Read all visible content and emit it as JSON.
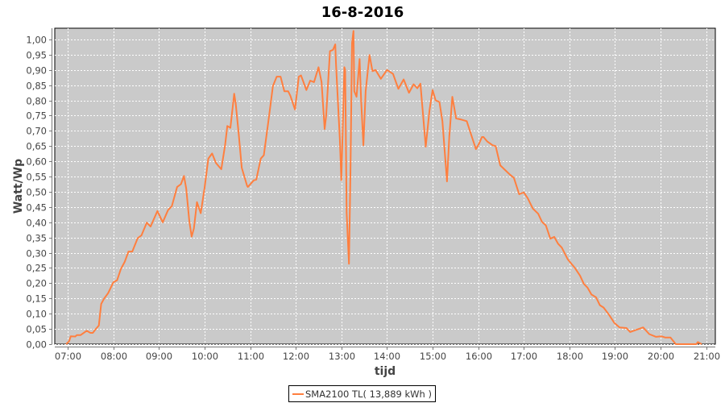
{
  "chart_data": {
    "type": "line",
    "title": "16-8-2016",
    "xlabel": "tijd",
    "ylabel": "Watt/Wp",
    "xlim": [
      "06:43",
      "21:12"
    ],
    "ylim": [
      0,
      1.037
    ],
    "x_ticks": [
      "07:00",
      "08:00",
      "09:00",
      "10:00",
      "11:00",
      "12:00",
      "13:00",
      "14:00",
      "15:00",
      "16:00",
      "17:00",
      "18:00",
      "19:00",
      "20:00",
      "21:00"
    ],
    "y_ticks": [
      "0,00",
      "0,05",
      "0,10",
      "0,15",
      "0,20",
      "0,25",
      "0,30",
      "0,35",
      "0,40",
      "0,45",
      "0,50",
      "0,55",
      "0,60",
      "0,65",
      "0,70",
      "0,75",
      "0,80",
      "0,85",
      "0,90",
      "0,95",
      "1,00"
    ],
    "grid": true,
    "legend_position": "bottom",
    "colors": {
      "series": "#ff7f3f",
      "plot_background": "#cacaca",
      "grid": "#ffffff"
    },
    "series": [
      {
        "name": "SMA2100 TL( 13,889 kWh )",
        "points": [
          [
            "06:58",
            0
          ],
          [
            "07:02",
            0.01
          ],
          [
            "07:04",
            0.026
          ],
          [
            "07:10",
            0.025
          ],
          [
            "07:12",
            0.03
          ],
          [
            "07:17",
            0.03
          ],
          [
            "07:25",
            0.044
          ],
          [
            "07:30",
            0.037
          ],
          [
            "07:33",
            0.037
          ],
          [
            "07:37",
            0.05
          ],
          [
            "07:41",
            0.061
          ],
          [
            "07:44",
            0.132
          ],
          [
            "07:48",
            0.15
          ],
          [
            "07:53",
            0.167
          ],
          [
            "08:00",
            0.203
          ],
          [
            "08:05",
            0.21
          ],
          [
            "08:10",
            0.247
          ],
          [
            "08:15",
            0.27
          ],
          [
            "08:20",
            0.304
          ],
          [
            "08:25",
            0.304
          ],
          [
            "08:32",
            0.348
          ],
          [
            "08:37",
            0.357
          ],
          [
            "08:44",
            0.399
          ],
          [
            "08:49",
            0.386
          ],
          [
            "08:58",
            0.437
          ],
          [
            "09:05",
            0.4
          ],
          [
            "09:12",
            0.44
          ],
          [
            "09:17",
            0.453
          ],
          [
            "09:24",
            0.516
          ],
          [
            "09:29",
            0.525
          ],
          [
            "09:33",
            0.552
          ],
          [
            "09:36",
            0.51
          ],
          [
            "09:40",
            0.404
          ],
          [
            "09:43",
            0.353
          ],
          [
            "09:46",
            0.38
          ],
          [
            "09:50",
            0.466
          ],
          [
            "09:55",
            0.43
          ],
          [
            "10:00",
            0.512
          ],
          [
            "10:05",
            0.609
          ],
          [
            "10:10",
            0.626
          ],
          [
            "10:15",
            0.595
          ],
          [
            "10:22",
            0.574
          ],
          [
            "10:27",
            0.653
          ],
          [
            "10:30",
            0.716
          ],
          [
            "10:34",
            0.71
          ],
          [
            "10:39",
            0.822
          ],
          [
            "10:41",
            0.79
          ],
          [
            "10:45",
            0.688
          ],
          [
            "10:49",
            0.579
          ],
          [
            "10:56",
            0.52
          ],
          [
            "10:57",
            0.516
          ],
          [
            "11:05",
            0.538
          ],
          [
            "11:08",
            0.54
          ],
          [
            "11:14",
            0.609
          ],
          [
            "11:18",
            0.62
          ],
          [
            "11:24",
            0.732
          ],
          [
            "11:30",
            0.847
          ],
          [
            "11:35",
            0.878
          ],
          [
            "11:40",
            0.878
          ],
          [
            "11:45",
            0.83
          ],
          [
            "11:50",
            0.83
          ],
          [
            "11:53",
            0.815
          ],
          [
            "11:59",
            0.77
          ],
          [
            "12:04",
            0.878
          ],
          [
            "12:07",
            0.882
          ],
          [
            "12:14",
            0.834
          ],
          [
            "12:19",
            0.865
          ],
          [
            "12:24",
            0.86
          ],
          [
            "12:30",
            0.909
          ],
          [
            "12:34",
            0.86
          ],
          [
            "12:38",
            0.706
          ],
          [
            "12:40",
            0.75
          ],
          [
            "12:45",
            0.962
          ],
          [
            "12:49",
            0.966
          ],
          [
            "12:52",
            0.984
          ],
          [
            "12:53",
            0.92
          ],
          [
            "12:58",
            0.671
          ],
          [
            "13:00",
            0.538
          ],
          [
            "13:02",
            0.72
          ],
          [
            "13:04",
            0.909
          ],
          [
            "13:05",
            0.9
          ],
          [
            "13:07",
            0.432
          ],
          [
            "13:10",
            0.264
          ],
          [
            "13:12",
            0.573
          ],
          [
            "13:14",
            0.988
          ],
          [
            "13:16",
            1.028
          ],
          [
            "13:17",
            0.83
          ],
          [
            "13:20",
            0.812
          ],
          [
            "13:24",
            0.936
          ],
          [
            "13:26",
            0.8
          ],
          [
            "13:29",
            0.653
          ],
          [
            "13:32",
            0.83
          ],
          [
            "13:37",
            0.949
          ],
          [
            "13:41",
            0.896
          ],
          [
            "13:45",
            0.9
          ],
          [
            "13:52",
            0.871
          ],
          [
            "14:00",
            0.9
          ],
          [
            "14:08",
            0.887
          ],
          [
            "14:15",
            0.838
          ],
          [
            "14:22",
            0.869
          ],
          [
            "14:29",
            0.825
          ],
          [
            "14:35",
            0.853
          ],
          [
            "14:40",
            0.84
          ],
          [
            "14:44",
            0.855
          ],
          [
            "14:51",
            0.648
          ],
          [
            "14:56",
            0.768
          ],
          [
            "15:00",
            0.834
          ],
          [
            "15:04",
            0.8
          ],
          [
            "15:09",
            0.795
          ],
          [
            "15:13",
            0.732
          ],
          [
            "15:19",
            0.534
          ],
          [
            "15:22",
            0.68
          ],
          [
            "15:26",
            0.812
          ],
          [
            "15:31",
            0.741
          ],
          [
            "15:38",
            0.737
          ],
          [
            "15:45",
            0.732
          ],
          [
            "15:50",
            0.693
          ],
          [
            "15:57",
            0.64
          ],
          [
            "16:01",
            0.657
          ],
          [
            "16:05",
            0.68
          ],
          [
            "16:07",
            0.68
          ],
          [
            "16:12",
            0.665
          ],
          [
            "16:19",
            0.653
          ],
          [
            "16:23",
            0.65
          ],
          [
            "16:29",
            0.587
          ],
          [
            "16:36",
            0.57
          ],
          [
            "16:42",
            0.556
          ],
          [
            "16:47",
            0.546
          ],
          [
            "16:54",
            0.492
          ],
          [
            "17:00",
            0.498
          ],
          [
            "17:05",
            0.48
          ],
          [
            "17:12",
            0.445
          ],
          [
            "17:19",
            0.428
          ],
          [
            "17:24",
            0.401
          ],
          [
            "17:29",
            0.39
          ],
          [
            "17:35",
            0.346
          ],
          [
            "17:40",
            0.352
          ],
          [
            "17:45",
            0.33
          ],
          [
            "17:50",
            0.317
          ],
          [
            "17:58",
            0.278
          ],
          [
            "18:07",
            0.251
          ],
          [
            "18:14",
            0.225
          ],
          [
            "18:19",
            0.198
          ],
          [
            "18:24",
            0.185
          ],
          [
            "18:29",
            0.163
          ],
          [
            "18:35",
            0.154
          ],
          [
            "18:40",
            0.128
          ],
          [
            "18:45",
            0.12
          ],
          [
            "18:52",
            0.097
          ],
          [
            "18:59",
            0.07
          ],
          [
            "19:06",
            0.055
          ],
          [
            "19:15",
            0.053
          ],
          [
            "19:20",
            0.04
          ],
          [
            "19:27",
            0.046
          ],
          [
            "19:37",
            0.055
          ],
          [
            "19:45",
            0.033
          ],
          [
            "19:54",
            0.024
          ],
          [
            "20:01",
            0.026
          ],
          [
            "20:06",
            0.022
          ],
          [
            "20:13",
            0.022
          ],
          [
            "20:20",
            0
          ],
          [
            "20:47",
            0
          ],
          [
            "20:49",
            0.007
          ],
          [
            "20:54",
            0
          ]
        ]
      }
    ]
  }
}
